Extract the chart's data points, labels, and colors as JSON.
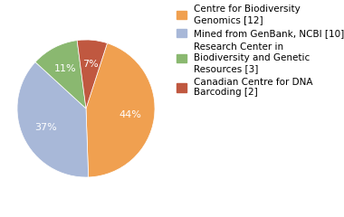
{
  "labels": [
    "Centre for Biodiversity\nGenomics [12]",
    "Mined from GenBank, NCBI [10]",
    "Research Center in\nBiodiversity and Genetic\nResources [3]",
    "Canadian Centre for DNA\nBarcoding [2]"
  ],
  "values": [
    44,
    37,
    11,
    7
  ],
  "colors": [
    "#f0a050",
    "#a8b8d8",
    "#8ab870",
    "#c05840"
  ],
  "startangle": 72,
  "background_color": "#ffffff",
  "text_color": "#ffffff",
  "fontsize": 8,
  "legend_fontsize": 7.5
}
